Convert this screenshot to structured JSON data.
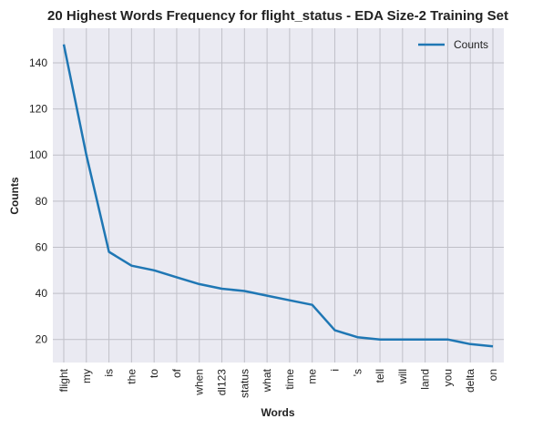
{
  "chart_data": {
    "type": "line",
    "title": "20 Highest Words Frequency for flight_status - EDA Size-2 Training Set",
    "xlabel": "Words",
    "ylabel": "Counts",
    "categories": [
      "flight",
      "my",
      "is",
      "the",
      "to",
      "of",
      "when",
      "dl123",
      "status",
      "what",
      "time",
      "me",
      "i",
      "'s",
      "tell",
      "will",
      "land",
      "you",
      "delta",
      "on"
    ],
    "series": [
      {
        "name": "Counts",
        "values": [
          148,
          100,
          58,
          52,
          50,
          47,
          44,
          42,
          41,
          39,
          37,
          35,
          24,
          21,
          20,
          20,
          20,
          20,
          18,
          17
        ]
      }
    ],
    "ylim": [
      10,
      155
    ],
    "yticks": [
      20,
      40,
      60,
      80,
      100,
      120,
      140
    ],
    "grid": true,
    "legend": "top-right",
    "colors": {
      "line": "#1f77b4",
      "plot_background": "#eaeaf2",
      "grid": "#c0c0c8"
    }
  }
}
